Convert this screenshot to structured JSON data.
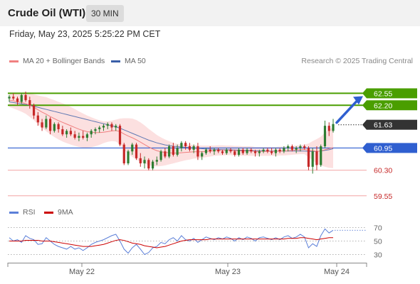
{
  "header": {
    "title": "Crude Oil (WTI)",
    "interval": "30 MIN"
  },
  "datetime": "Friday, May 23, 2025 5:25:22 PM CET",
  "credit": "Research © 2025 Trading Central",
  "legend": {
    "ma20": {
      "label": "MA 20 + Bollinger Bands",
      "color": "#f08080"
    },
    "ma50": {
      "label": "MA 50",
      "color": "#3a5fa8"
    },
    "rsi": {
      "label": "RSI",
      "color": "#5b7fd8"
    },
    "ma9": {
      "label": "9MA",
      "color": "#cc0000"
    }
  },
  "colors": {
    "up": "#2e7d32",
    "down": "#c62828",
    "resistance": "#4a9e00",
    "support": "#f3a3a3",
    "pivot": "#2f5fd0",
    "current": "#333333",
    "arrow": "#2f5fd0"
  },
  "chart_data": [
    {
      "type": "candlestick",
      "title": "Crude Oil (WTI)",
      "ylim": [
        59.4,
        62.85
      ],
      "x_ticks": [
        "May 22",
        "May 23",
        "May 24"
      ],
      "levels": [
        {
          "label": "62.55",
          "value": 62.55,
          "kind": "resistance"
        },
        {
          "label": "62.20",
          "value": 62.2,
          "kind": "resistance"
        },
        {
          "label": "61.63",
          "value": 61.63,
          "kind": "current"
        },
        {
          "label": "60.95",
          "value": 60.95,
          "kind": "pivot"
        },
        {
          "label": "60.30",
          "value": 60.3,
          "kind": "support"
        },
        {
          "label": "59.55",
          "value": 59.55,
          "kind": "support"
        }
      ],
      "ohlc": [
        [
          62.4,
          62.5,
          62.3,
          62.45
        ],
        [
          62.45,
          62.55,
          62.35,
          62.4
        ],
        [
          62.4,
          62.45,
          62.2,
          62.3
        ],
        [
          62.3,
          62.55,
          62.25,
          62.5
        ],
        [
          62.5,
          62.6,
          62.3,
          62.35
        ],
        [
          62.35,
          62.45,
          62.1,
          62.2
        ],
        [
          62.2,
          62.25,
          61.8,
          61.9
        ],
        [
          61.9,
          62.0,
          61.6,
          61.7
        ],
        [
          61.7,
          61.8,
          61.45,
          61.55
        ],
        [
          61.55,
          61.9,
          61.5,
          61.8
        ],
        [
          61.8,
          61.85,
          61.35,
          61.45
        ],
        [
          61.45,
          61.7,
          61.4,
          61.65
        ],
        [
          61.65,
          61.7,
          61.4,
          61.5
        ],
        [
          61.5,
          61.6,
          61.3,
          61.35
        ],
        [
          61.35,
          61.5,
          61.25,
          61.45
        ],
        [
          61.45,
          61.55,
          61.3,
          61.35
        ],
        [
          61.35,
          61.45,
          61.2,
          61.25
        ],
        [
          61.25,
          61.4,
          61.15,
          61.3
        ],
        [
          61.3,
          61.45,
          61.2,
          61.25
        ],
        [
          61.25,
          61.4,
          61.15,
          61.35
        ],
        [
          61.35,
          61.5,
          61.25,
          61.45
        ],
        [
          61.45,
          61.55,
          61.35,
          61.5
        ],
        [
          61.5,
          61.6,
          61.4,
          61.55
        ],
        [
          61.55,
          61.65,
          61.45,
          61.6
        ],
        [
          61.6,
          61.7,
          61.5,
          61.65
        ],
        [
          61.65,
          61.7,
          61.45,
          61.55
        ],
        [
          61.55,
          61.65,
          61.45,
          61.6
        ],
        [
          61.6,
          61.65,
          61.0,
          61.05
        ],
        [
          61.05,
          61.1,
          60.45,
          60.5
        ],
        [
          60.5,
          60.9,
          60.45,
          60.85
        ],
        [
          60.85,
          61.1,
          60.75,
          61.05
        ],
        [
          61.05,
          61.1,
          60.6,
          60.65
        ],
        [
          60.65,
          60.8,
          60.4,
          60.5
        ],
        [
          60.5,
          60.7,
          60.35,
          60.6
        ],
        [
          60.6,
          60.65,
          60.3,
          60.35
        ],
        [
          60.35,
          60.6,
          60.3,
          60.55
        ],
        [
          60.55,
          60.7,
          60.45,
          60.6
        ],
        [
          60.6,
          60.9,
          60.55,
          60.85
        ],
        [
          60.85,
          60.95,
          60.65,
          60.7
        ],
        [
          60.7,
          61.05,
          60.65,
          61.0
        ],
        [
          61.0,
          61.1,
          60.7,
          60.75
        ],
        [
          60.75,
          61.05,
          60.7,
          60.95
        ],
        [
          60.95,
          61.15,
          60.85,
          61.1
        ],
        [
          61.1,
          61.15,
          60.9,
          61.0
        ],
        [
          61.0,
          61.1,
          60.85,
          60.9
        ],
        [
          60.9,
          61.05,
          60.8,
          61.0
        ],
        [
          61.0,
          61.1,
          60.6,
          60.7
        ],
        [
          60.7,
          60.85,
          60.6,
          60.8
        ],
        [
          60.8,
          60.95,
          60.75,
          60.9
        ],
        [
          60.9,
          61.0,
          60.8,
          60.85
        ],
        [
          60.85,
          60.95,
          60.75,
          60.9
        ],
        [
          60.9,
          60.95,
          60.8,
          60.85
        ],
        [
          60.85,
          60.9,
          60.75,
          60.8
        ],
        [
          60.8,
          60.95,
          60.75,
          60.9
        ],
        [
          60.9,
          60.95,
          60.8,
          60.85
        ],
        [
          60.85,
          60.9,
          60.7,
          60.75
        ],
        [
          60.75,
          60.95,
          60.7,
          60.9
        ],
        [
          60.9,
          60.95,
          60.75,
          60.8
        ],
        [
          60.8,
          60.95,
          60.75,
          60.9
        ],
        [
          60.9,
          60.95,
          60.8,
          60.85
        ],
        [
          60.85,
          60.9,
          60.7,
          60.8
        ],
        [
          60.8,
          60.9,
          60.7,
          60.85
        ],
        [
          60.85,
          60.95,
          60.8,
          60.9
        ],
        [
          60.9,
          60.95,
          60.8,
          60.85
        ],
        [
          60.85,
          60.95,
          60.75,
          60.8
        ],
        [
          60.8,
          60.95,
          60.7,
          60.9
        ],
        [
          60.9,
          60.95,
          60.8,
          60.85
        ],
        [
          60.85,
          61.0,
          60.8,
          60.95
        ],
        [
          60.95,
          61.05,
          60.85,
          61.0
        ],
        [
          61.0,
          61.05,
          60.85,
          60.9
        ],
        [
          60.9,
          61.0,
          60.8,
          60.95
        ],
        [
          60.95,
          61.05,
          60.85,
          61.0
        ],
        [
          61.0,
          61.05,
          60.9,
          60.95
        ],
        [
          60.95,
          61.0,
          60.3,
          60.4
        ],
        [
          60.4,
          60.95,
          60.2,
          60.85
        ],
        [
          60.85,
          61.0,
          60.3,
          60.45
        ],
        [
          60.45,
          61.05,
          60.4,
          61.0
        ],
        [
          61.0,
          61.75,
          60.95,
          61.6
        ],
        [
          61.6,
          61.7,
          61.3,
          61.45
        ],
        [
          61.45,
          61.8,
          61.4,
          61.65
        ]
      ],
      "ma20": [
        62.35,
        62.33,
        62.3,
        62.28,
        62.25,
        62.2,
        62.14,
        62.07,
        62.0,
        61.94,
        61.87,
        61.81,
        61.75,
        61.7,
        61.65,
        61.6,
        61.55,
        61.5,
        61.46,
        61.43,
        61.41,
        61.4,
        61.4,
        61.41,
        61.43,
        61.45,
        61.46,
        61.43,
        61.36,
        61.3,
        61.25,
        61.19,
        61.12,
        61.05,
        60.98,
        60.92,
        60.87,
        60.84,
        60.82,
        60.81,
        60.8,
        60.8,
        60.81,
        60.82,
        60.83,
        60.84,
        60.84,
        60.84,
        60.85,
        60.86,
        60.87,
        60.88,
        60.88,
        60.88,
        60.88,
        60.87,
        60.87,
        60.86,
        60.86,
        60.86,
        60.85,
        60.85,
        60.85,
        60.85,
        60.85,
        60.85,
        60.86,
        60.86,
        60.87,
        60.88,
        60.89,
        60.9,
        60.91,
        60.88,
        60.87,
        60.85,
        60.86,
        60.9,
        60.93,
        60.96
      ],
      "ma50": [
        62.3,
        62.28,
        62.26,
        62.24,
        62.22,
        62.2,
        62.17,
        62.14,
        62.11,
        62.08,
        62.05,
        62.02,
        61.99,
        61.96,
        61.93,
        61.9,
        61.87,
        61.84,
        61.81,
        61.78,
        61.75,
        61.72,
        61.69,
        61.66,
        61.63,
        61.6,
        61.57,
        61.53,
        61.48,
        61.43,
        61.38,
        61.33,
        61.28,
        61.23,
        61.18,
        61.14,
        61.1,
        61.07,
        61.04,
        61.02,
        61.0,
        60.99,
        60.98,
        60.97,
        60.96,
        60.95,
        60.94,
        60.93,
        60.92,
        60.92,
        60.91,
        60.91,
        60.9,
        60.9,
        60.9,
        60.89,
        60.89,
        60.88,
        60.88,
        60.88,
        60.87,
        60.87,
        60.87,
        60.86,
        60.86,
        60.86,
        60.86,
        60.86,
        60.86,
        60.86,
        60.86,
        60.86,
        60.86,
        60.85,
        60.85,
        60.85,
        60.86,
        60.88,
        60.9,
        60.93
      ],
      "bb_width": [
        0.2,
        0.22,
        0.24,
        0.27,
        0.3,
        0.34,
        0.38,
        0.42,
        0.46,
        0.5,
        0.52,
        0.54,
        0.55,
        0.56,
        0.56,
        0.55,
        0.54,
        0.52,
        0.5,
        0.47,
        0.44,
        0.4,
        0.36,
        0.32,
        0.3,
        0.3,
        0.32,
        0.38,
        0.46,
        0.52,
        0.56,
        0.58,
        0.58,
        0.56,
        0.53,
        0.5,
        0.46,
        0.42,
        0.38,
        0.34,
        0.3,
        0.27,
        0.25,
        0.23,
        0.22,
        0.2,
        0.19,
        0.18,
        0.17,
        0.16,
        0.15,
        0.15,
        0.15,
        0.14,
        0.14,
        0.14,
        0.14,
        0.14,
        0.14,
        0.14,
        0.13,
        0.13,
        0.13,
        0.13,
        0.13,
        0.13,
        0.13,
        0.13,
        0.13,
        0.13,
        0.13,
        0.13,
        0.14,
        0.2,
        0.28,
        0.36,
        0.42,
        0.5,
        0.56,
        0.6
      ]
    },
    {
      "type": "line",
      "title": "RSI",
      "ylim": [
        20,
        80
      ],
      "y_ticks": [
        70,
        50,
        30
      ],
      "series": [
        {
          "name": "RSI",
          "values": [
            55,
            50,
            52,
            48,
            58,
            54,
            52,
            45,
            46,
            55,
            50,
            45,
            42,
            40,
            38,
            42,
            38,
            40,
            36,
            40,
            45,
            48,
            50,
            52,
            55,
            58,
            60,
            50,
            38,
            32,
            40,
            45,
            38,
            30,
            33,
            40,
            42,
            48,
            46,
            52,
            55,
            50,
            58,
            52,
            50,
            54,
            48,
            52,
            56,
            54,
            52,
            55,
            53,
            56,
            54,
            50,
            55,
            52,
            56,
            54,
            50,
            55,
            56,
            54,
            52,
            55,
            52,
            56,
            58,
            54,
            56,
            60,
            56,
            40,
            46,
            42,
            58,
            68,
            62,
            66
          ]
        },
        {
          "name": "9MA",
          "values": [
            50,
            50,
            50,
            50,
            51,
            51,
            51,
            51,
            50,
            50,
            50,
            49,
            48,
            47,
            46,
            45,
            44,
            43,
            42,
            42,
            42,
            43,
            44,
            45,
            47,
            49,
            51,
            52,
            51,
            49,
            47,
            46,
            45,
            43,
            42,
            41,
            40,
            41,
            42,
            44,
            46,
            48,
            50,
            51,
            52,
            52,
            52,
            52,
            52,
            53,
            53,
            53,
            53,
            53,
            53,
            53,
            53,
            53,
            53,
            53,
            53,
            53,
            53,
            53,
            53,
            53,
            53,
            53,
            54,
            54,
            54,
            55,
            55,
            54,
            53,
            52,
            53,
            54,
            55,
            55
          ]
        }
      ]
    }
  ]
}
